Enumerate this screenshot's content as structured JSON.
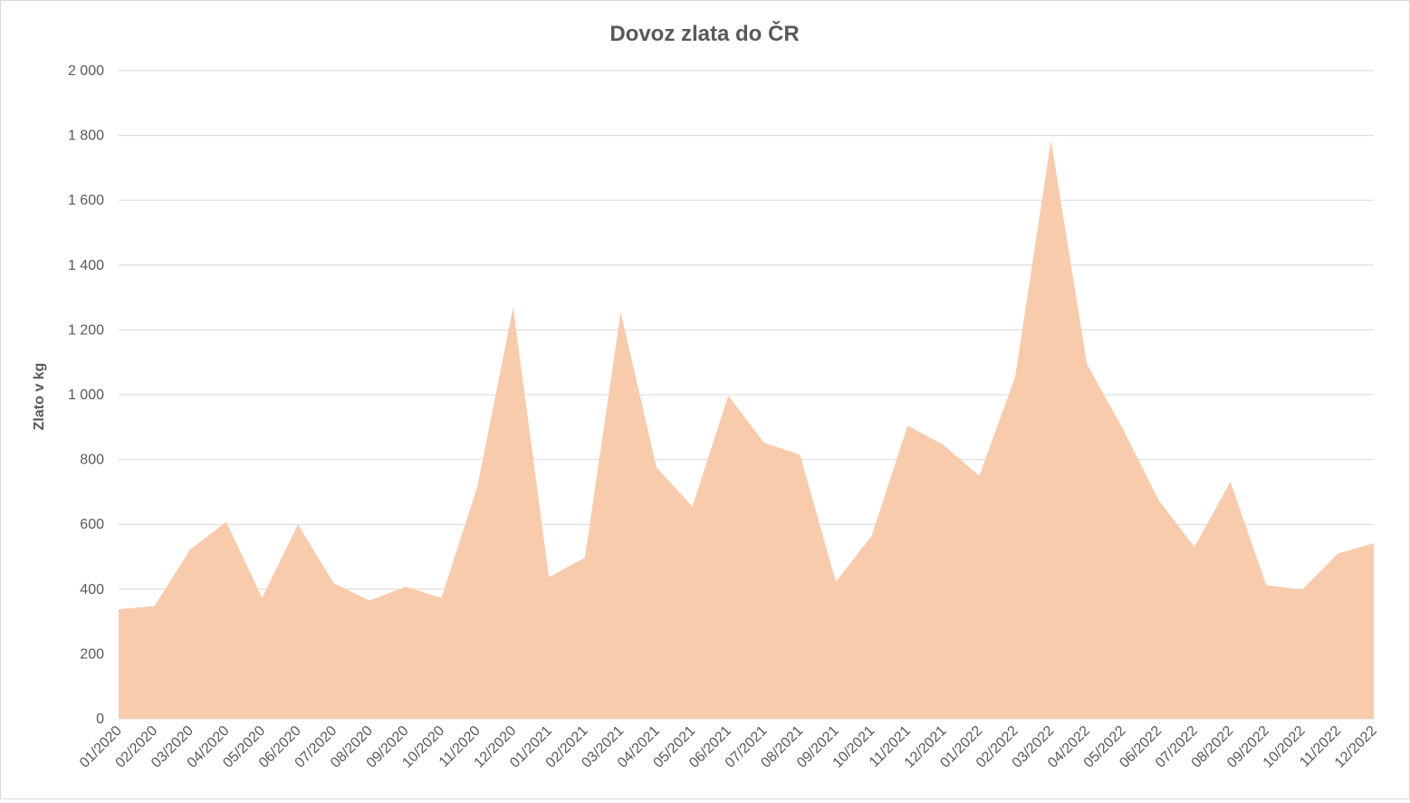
{
  "chart_data": {
    "type": "area",
    "title": "Dovoz zlata do ČR",
    "xlabel": "",
    "ylabel": "Zlato v kg",
    "ylim": [
      0,
      2000
    ],
    "yticks": [
      "0",
      "200",
      "400",
      "600",
      "800",
      "1 000",
      "1 200",
      "1 400",
      "1 600",
      "1 800",
      "2 000"
    ],
    "ytick_values": [
      0,
      200,
      400,
      600,
      800,
      1000,
      1200,
      1400,
      1600,
      1800,
      2000
    ],
    "grid": true,
    "legend": "none",
    "categories": [
      "01/2020",
      "02/2020",
      "03/2020",
      "04/2020",
      "05/2020",
      "06/2020",
      "07/2020",
      "08/2020",
      "09/2020",
      "10/2020",
      "11/2020",
      "12/2020",
      "01/2021",
      "02/2021",
      "03/2021",
      "04/2021",
      "05/2021",
      "06/2021",
      "07/2021",
      "08/2021",
      "09/2021",
      "10/2021",
      "11/2021",
      "12/2021",
      "01/2022",
      "02/2022",
      "03/2022",
      "04/2022",
      "05/2022",
      "06/2022",
      "07/2022",
      "08/2022",
      "09/2022",
      "10/2022",
      "11/2022",
      "12/2022"
    ],
    "values": [
      338,
      348,
      523,
      608,
      373,
      600,
      418,
      365,
      408,
      373,
      715,
      1270,
      437,
      497,
      1255,
      775,
      655,
      997,
      852,
      815,
      423,
      565,
      905,
      845,
      750,
      1055,
      1785,
      1095,
      895,
      675,
      530,
      732,
      413,
      398,
      510,
      542
    ],
    "colors": {
      "area_fill": "#f8cbad",
      "grid": "#d9d9d9",
      "text": "#595959"
    }
  }
}
